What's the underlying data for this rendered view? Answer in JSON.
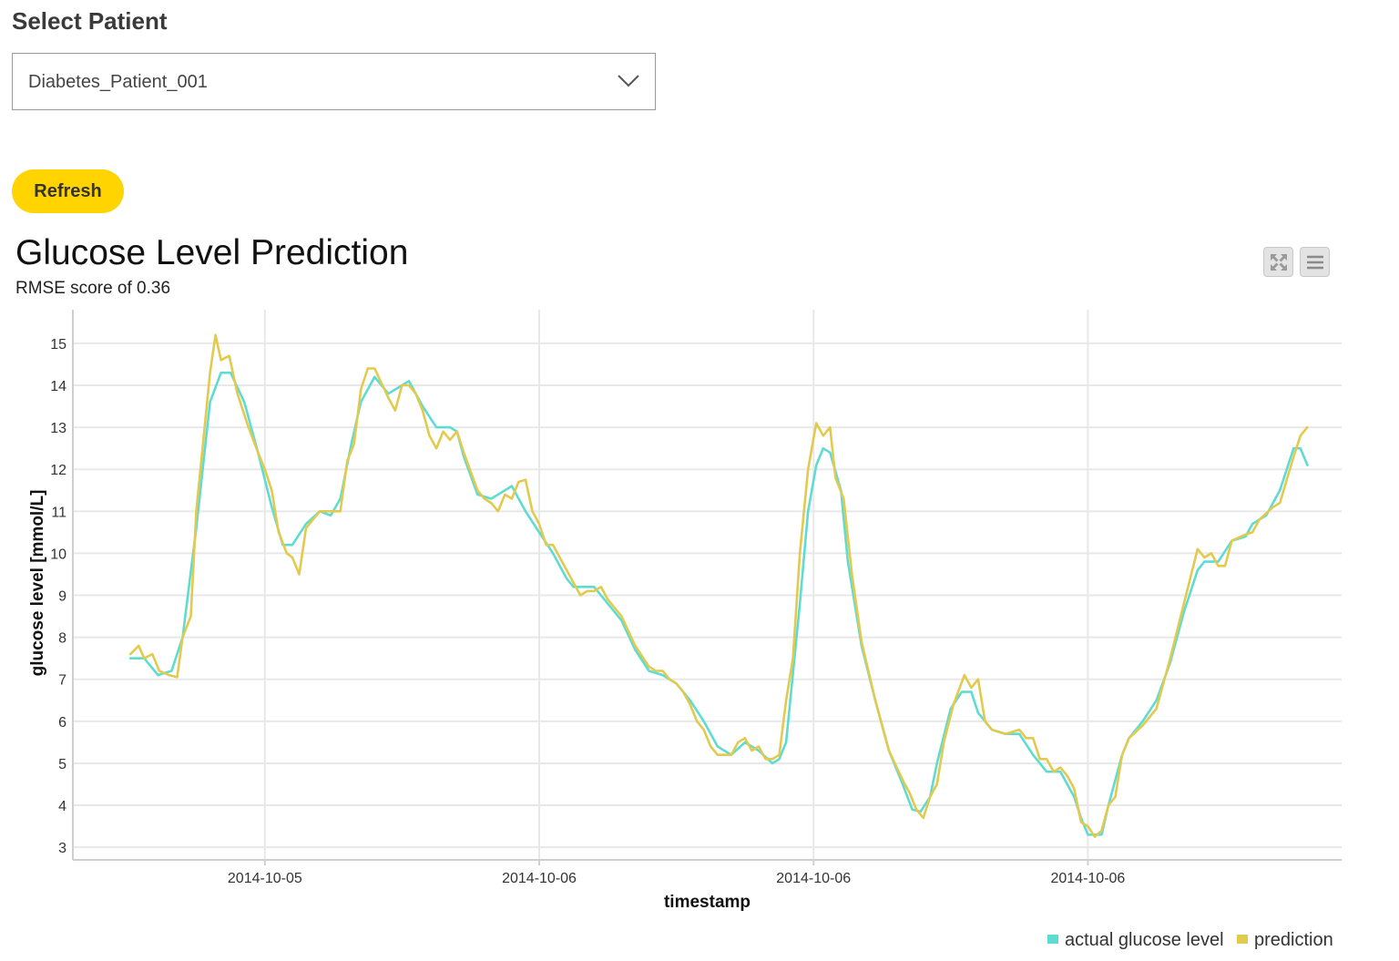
{
  "select": {
    "label": "Select Patient",
    "value": "Diabetes_Patient_001"
  },
  "refresh_label": "Refresh",
  "colors": {
    "accent": "#ffd400",
    "actual": "#5fdcd2",
    "prediction": "#e2ca4f"
  },
  "chart_data": {
    "type": "line",
    "title": "Glucose Level Prediction",
    "subtitle": "RMSE score of 0.36",
    "xlabel": "timestamp",
    "ylabel": "glucose level [mmol/L]",
    "ylim": [
      2.7,
      15.8
    ],
    "yticks": [
      3,
      4,
      5,
      6,
      7,
      8,
      9,
      10,
      11,
      12,
      13,
      14,
      15
    ],
    "xticks": [
      {
        "x": 14,
        "label": "2014-10-05"
      },
      {
        "x": 34,
        "label": "2014-10-06"
      },
      {
        "x": 54,
        "label": "2014-10-06"
      },
      {
        "x": 74,
        "label": "2014-10-06"
      }
    ],
    "xlim": [
      0,
      92.5
    ],
    "grid": true,
    "legend": "bottom-right",
    "series": [
      {
        "name": "actual glucose level",
        "color": "#5fdcd2",
        "points": [
          [
            4.2,
            7.5
          ],
          [
            5.2,
            7.5
          ],
          [
            6.2,
            7.1
          ],
          [
            7.2,
            7.2
          ],
          [
            8,
            8
          ],
          [
            9,
            10.6
          ],
          [
            10,
            13.6
          ],
          [
            10.8,
            14.3
          ],
          [
            11.5,
            14.3
          ],
          [
            12.5,
            13.6
          ],
          [
            13.5,
            12.4
          ],
          [
            14.5,
            11.1
          ],
          [
            15.3,
            10.2
          ],
          [
            16,
            10.2
          ],
          [
            17,
            10.7
          ],
          [
            18,
            11
          ],
          [
            18.8,
            10.9
          ],
          [
            19.5,
            11.3
          ],
          [
            20.3,
            12.6
          ],
          [
            21,
            13.6
          ],
          [
            22,
            14.2
          ],
          [
            23,
            13.8
          ],
          [
            24,
            14
          ],
          [
            24.5,
            14.1
          ],
          [
            25.5,
            13.5
          ],
          [
            26.5,
            13
          ],
          [
            27.5,
            13
          ],
          [
            28,
            12.9
          ],
          [
            28.5,
            12.3
          ],
          [
            29.5,
            11.4
          ],
          [
            30.5,
            11.3
          ],
          [
            31.5,
            11.5
          ],
          [
            32,
            11.6
          ],
          [
            33,
            11
          ],
          [
            34,
            10.5
          ],
          [
            35,
            10
          ],
          [
            36,
            9.4
          ],
          [
            36.5,
            9.2
          ],
          [
            37.5,
            9.2
          ],
          [
            38,
            9.2
          ],
          [
            39,
            8.8
          ],
          [
            40,
            8.4
          ],
          [
            41,
            7.7
          ],
          [
            42,
            7.2
          ],
          [
            43,
            7.1
          ],
          [
            44,
            6.9
          ],
          [
            45,
            6.5
          ],
          [
            46,
            6
          ],
          [
            47,
            5.4
          ],
          [
            48,
            5.2
          ],
          [
            49,
            5.5
          ],
          [
            50,
            5.3
          ],
          [
            51,
            5
          ],
          [
            51.5,
            5.1
          ],
          [
            52,
            5.5
          ],
          [
            53,
            8.8
          ],
          [
            53.6,
            11
          ],
          [
            54.2,
            12.1
          ],
          [
            54.7,
            12.5
          ],
          [
            55.2,
            12.4
          ],
          [
            56,
            11.5
          ],
          [
            56.5,
            9.8
          ],
          [
            57.5,
            7.8
          ],
          [
            58.5,
            6.5
          ],
          [
            59.5,
            5.3
          ],
          [
            60.5,
            4.5
          ],
          [
            61.2,
            3.9
          ],
          [
            61.8,
            3.85
          ],
          [
            62.5,
            4.2
          ],
          [
            63,
            5
          ],
          [
            64,
            6.3
          ],
          [
            64.8,
            6.7
          ],
          [
            65.5,
            6.7
          ],
          [
            66,
            6.2
          ],
          [
            67,
            5.8
          ],
          [
            68,
            5.7
          ],
          [
            69,
            5.7
          ],
          [
            70,
            5.2
          ],
          [
            71,
            4.8
          ],
          [
            72,
            4.8
          ],
          [
            73,
            4.2
          ],
          [
            73.5,
            3.7
          ],
          [
            74,
            3.3
          ],
          [
            74.5,
            3.3
          ],
          [
            75,
            3.3
          ],
          [
            75.5,
            4
          ],
          [
            76.5,
            5.2
          ],
          [
            77,
            5.6
          ],
          [
            78,
            6
          ],
          [
            79,
            6.5
          ],
          [
            80,
            7.4
          ],
          [
            81,
            8.6
          ],
          [
            82,
            9.6
          ],
          [
            82.5,
            9.8
          ],
          [
            83.5,
            9.8
          ],
          [
            84.5,
            10.3
          ],
          [
            85.5,
            10.4
          ],
          [
            86,
            10.7
          ],
          [
            87,
            10.9
          ],
          [
            88,
            11.5
          ],
          [
            89,
            12.5
          ],
          [
            89.5,
            12.5
          ],
          [
            90,
            12.1
          ]
        ]
      },
      {
        "name": "prediction",
        "color": "#e2ca4f",
        "points": [
          [
            4.2,
            7.6
          ],
          [
            4.8,
            7.8
          ],
          [
            5.2,
            7.5
          ],
          [
            5.8,
            7.6
          ],
          [
            6.3,
            7.2
          ],
          [
            7,
            7.1
          ],
          [
            7.6,
            7.05
          ],
          [
            8,
            8
          ],
          [
            8.6,
            8.5
          ],
          [
            9,
            11
          ],
          [
            10,
            14.3
          ],
          [
            10.4,
            15.2
          ],
          [
            10.8,
            14.6
          ],
          [
            11.4,
            14.7
          ],
          [
            12,
            13.8
          ],
          [
            12.8,
            13
          ],
          [
            13.5,
            12.4
          ],
          [
            14,
            12
          ],
          [
            14.5,
            11.5
          ],
          [
            15,
            10.5
          ],
          [
            15.6,
            10
          ],
          [
            16,
            9.9
          ],
          [
            16.5,
            9.5
          ],
          [
            17,
            10.6
          ],
          [
            18,
            11
          ],
          [
            18.6,
            11
          ],
          [
            19,
            11
          ],
          [
            19.5,
            11
          ],
          [
            20,
            12.2
          ],
          [
            20.5,
            12.6
          ],
          [
            21,
            13.9
          ],
          [
            21.5,
            14.4
          ],
          [
            22,
            14.4
          ],
          [
            23,
            13.7
          ],
          [
            23.5,
            13.4
          ],
          [
            24,
            14
          ],
          [
            24.5,
            14
          ],
          [
            25,
            13.8
          ],
          [
            25.5,
            13.4
          ],
          [
            26,
            12.8
          ],
          [
            26.5,
            12.5
          ],
          [
            27,
            12.9
          ],
          [
            27.5,
            12.7
          ],
          [
            28,
            12.9
          ],
          [
            28.5,
            12.4
          ],
          [
            29.5,
            11.5
          ],
          [
            30,
            11.3
          ],
          [
            30.5,
            11.2
          ],
          [
            31,
            11
          ],
          [
            31.5,
            11.4
          ],
          [
            32,
            11.3
          ],
          [
            32.5,
            11.7
          ],
          [
            33,
            11.75
          ],
          [
            33.5,
            11
          ],
          [
            34,
            10.7
          ],
          [
            34.5,
            10.2
          ],
          [
            35,
            10.2
          ],
          [
            35.5,
            9.9
          ],
          [
            36,
            9.6
          ],
          [
            36.5,
            9.3
          ],
          [
            37,
            9
          ],
          [
            37.5,
            9.1
          ],
          [
            38,
            9.1
          ],
          [
            38.5,
            9.2
          ],
          [
            39,
            8.9
          ],
          [
            40,
            8.5
          ],
          [
            41,
            7.8
          ],
          [
            42,
            7.3
          ],
          [
            42.5,
            7.2
          ],
          [
            43,
            7.2
          ],
          [
            43.5,
            7
          ],
          [
            44,
            6.9
          ],
          [
            44.5,
            6.7
          ],
          [
            45,
            6.4
          ],
          [
            45.5,
            6
          ],
          [
            46,
            5.8
          ],
          [
            46.5,
            5.4
          ],
          [
            47,
            5.2
          ],
          [
            48,
            5.2
          ],
          [
            48.5,
            5.5
          ],
          [
            49,
            5.6
          ],
          [
            49.5,
            5.3
          ],
          [
            50,
            5.4
          ],
          [
            50.5,
            5.1
          ],
          [
            51,
            5.1
          ],
          [
            51.5,
            5.2
          ],
          [
            52,
            6.5
          ],
          [
            52.5,
            7.5
          ],
          [
            53,
            10
          ],
          [
            53.6,
            12
          ],
          [
            54.2,
            13.1
          ],
          [
            54.7,
            12.8
          ],
          [
            55.2,
            13
          ],
          [
            55.6,
            11.8
          ],
          [
            56.2,
            11.3
          ],
          [
            56.8,
            9.5
          ],
          [
            57.5,
            7.9
          ],
          [
            58.5,
            6.5
          ],
          [
            59.5,
            5.3
          ],
          [
            60.5,
            4.6
          ],
          [
            61,
            4.3
          ],
          [
            61.5,
            3.9
          ],
          [
            62,
            3.7
          ],
          [
            62.5,
            4.2
          ],
          [
            63,
            4.5
          ],
          [
            63.5,
            5.5
          ],
          [
            64.2,
            6.4
          ],
          [
            65,
            7.1
          ],
          [
            65.5,
            6.8
          ],
          [
            66,
            7
          ],
          [
            66.5,
            6
          ],
          [
            67,
            5.8
          ],
          [
            68,
            5.7
          ],
          [
            69,
            5.8
          ],
          [
            69.5,
            5.6
          ],
          [
            70,
            5.6
          ],
          [
            70.5,
            5.1
          ],
          [
            71,
            5.1
          ],
          [
            71.5,
            4.8
          ],
          [
            72,
            4.9
          ],
          [
            72.5,
            4.7
          ],
          [
            73,
            4.4
          ],
          [
            73.5,
            3.6
          ],
          [
            74,
            3.5
          ],
          [
            74.5,
            3.25
          ],
          [
            75,
            3.4
          ],
          [
            75.5,
            4
          ],
          [
            76,
            4.2
          ],
          [
            76.5,
            5.2
          ],
          [
            77,
            5.6
          ],
          [
            78,
            5.9
          ],
          [
            79,
            6.3
          ],
          [
            80,
            7.5
          ],
          [
            81,
            8.8
          ],
          [
            82,
            10.1
          ],
          [
            82.5,
            9.9
          ],
          [
            83,
            10
          ],
          [
            83.5,
            9.7
          ],
          [
            84,
            9.7
          ],
          [
            84.5,
            10.3
          ],
          [
            85.5,
            10.45
          ],
          [
            86,
            10.5
          ],
          [
            86.5,
            10.8
          ],
          [
            87.5,
            11.1
          ],
          [
            88,
            11.2
          ],
          [
            89,
            12.3
          ],
          [
            89.5,
            12.8
          ],
          [
            90,
            13
          ]
        ]
      }
    ]
  }
}
